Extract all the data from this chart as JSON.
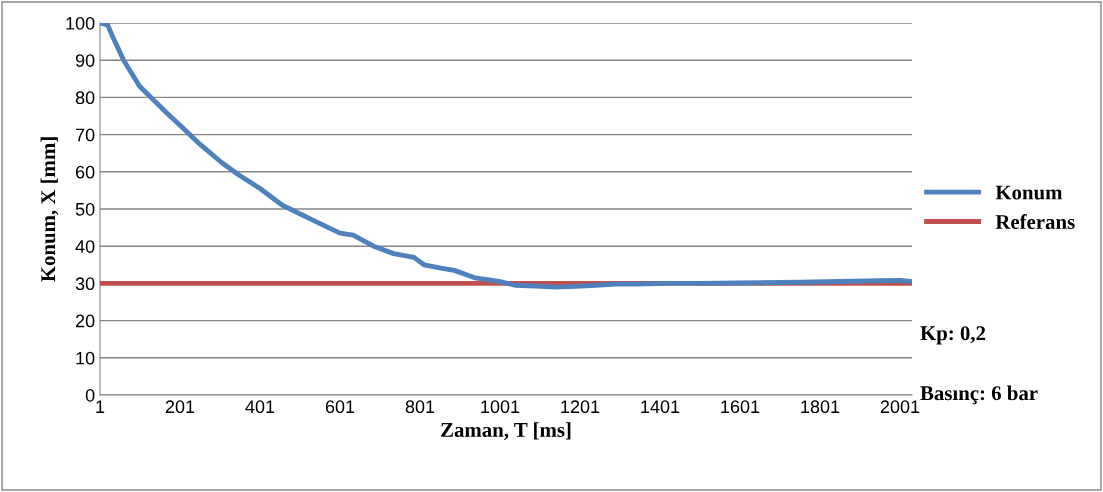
{
  "chart_data": {
    "type": "line",
    "xlabel": "Zaman, T [ms]",
    "ylabel": "Konum, X [mm]",
    "xlim": [
      1,
      2031
    ],
    "ylim": [
      0,
      100
    ],
    "xticks": [
      1,
      201,
      401,
      601,
      801,
      1001,
      1201,
      1401,
      1601,
      1801,
      2001
    ],
    "yticks": [
      0,
      10,
      20,
      30,
      40,
      50,
      60,
      70,
      80,
      90,
      100
    ],
    "grid": "y",
    "legend": "right",
    "marker": "none",
    "line_style": "solid",
    "series": [
      {
        "name": "Konum",
        "color": "#4f81bd",
        "x": [
          1,
          20,
          30,
          60,
          100,
          166,
          201,
          250,
          305,
          350,
          401,
          457,
          533,
          601,
          634,
          685,
          735,
          786,
          811,
          860,
          887,
          938,
          970,
          1001,
          1039,
          1090,
          1140,
          1190,
          1241,
          1290,
          1343,
          1420,
          1495,
          1600,
          1748,
          1850,
          1950,
          2001,
          2031
        ],
        "values": [
          100,
          99.5,
          97,
          90,
          83,
          76,
          72.5,
          67.5,
          62.5,
          59,
          55.5,
          51,
          47,
          43.5,
          43,
          40,
          38,
          37,
          35,
          34,
          33.5,
          31.5,
          31,
          30.5,
          29.5,
          29.3,
          29,
          29.2,
          29.5,
          29.8,
          29.8,
          30,
          30,
          30.1,
          30.3,
          30.5,
          30.7,
          30.8,
          30.5
        ]
      },
      {
        "name": "Referans",
        "color": "#c0504d",
        "x": [
          1,
          2031
        ],
        "values": [
          30,
          30
        ]
      }
    ],
    "annotations": [
      "Kp: 0,2",
      "Basınç: 6 bar"
    ]
  }
}
